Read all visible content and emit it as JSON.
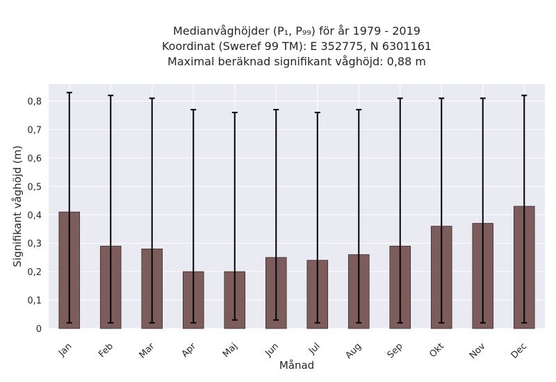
{
  "chart_data": {
    "type": "bar",
    "title_lines": [
      "Medianvåghöjder (P₁, P₉₉) för år 1979 - 2019",
      "Koordinat (Sweref 99 TM): E 352775, N 6301161",
      "Maximal beräknad signifikant våghöjd: 0,88 m"
    ],
    "xlabel": "Månad",
    "ylabel": "Signifikant våghöjd (m)",
    "categories": [
      "Jan",
      "Feb",
      "Mar",
      "Apr",
      "Maj",
      "Jun",
      "Jul",
      "Aug",
      "Sep",
      "Okt",
      "Nov",
      "Dec"
    ],
    "values": [
      0.41,
      0.29,
      0.28,
      0.2,
      0.2,
      0.25,
      0.24,
      0.26,
      0.29,
      0.36,
      0.37,
      0.43
    ],
    "error_low": [
      0.02,
      0.02,
      0.02,
      0.02,
      0.03,
      0.03,
      0.02,
      0.02,
      0.02,
      0.02,
      0.02,
      0.02
    ],
    "error_high": [
      0.83,
      0.82,
      0.81,
      0.77,
      0.76,
      0.77,
      0.76,
      0.77,
      0.81,
      0.81,
      0.81,
      0.82
    ],
    "yticks": [
      0,
      0.1,
      0.2,
      0.3,
      0.4,
      0.5,
      0.6,
      0.7,
      0.8
    ],
    "ytick_labels": [
      "0",
      "0,1",
      "0,2",
      "0,3",
      "0,4",
      "0,5",
      "0,6",
      "0,7",
      "0,8"
    ],
    "ylim": [
      0,
      0.86
    ],
    "grid": true,
    "colors": {
      "bar": "#7d5c5c",
      "bar_edge": "#3a2a2a",
      "error": "#000000",
      "plot_bg": "#eaeaf2",
      "grid": "#ffffff"
    }
  }
}
